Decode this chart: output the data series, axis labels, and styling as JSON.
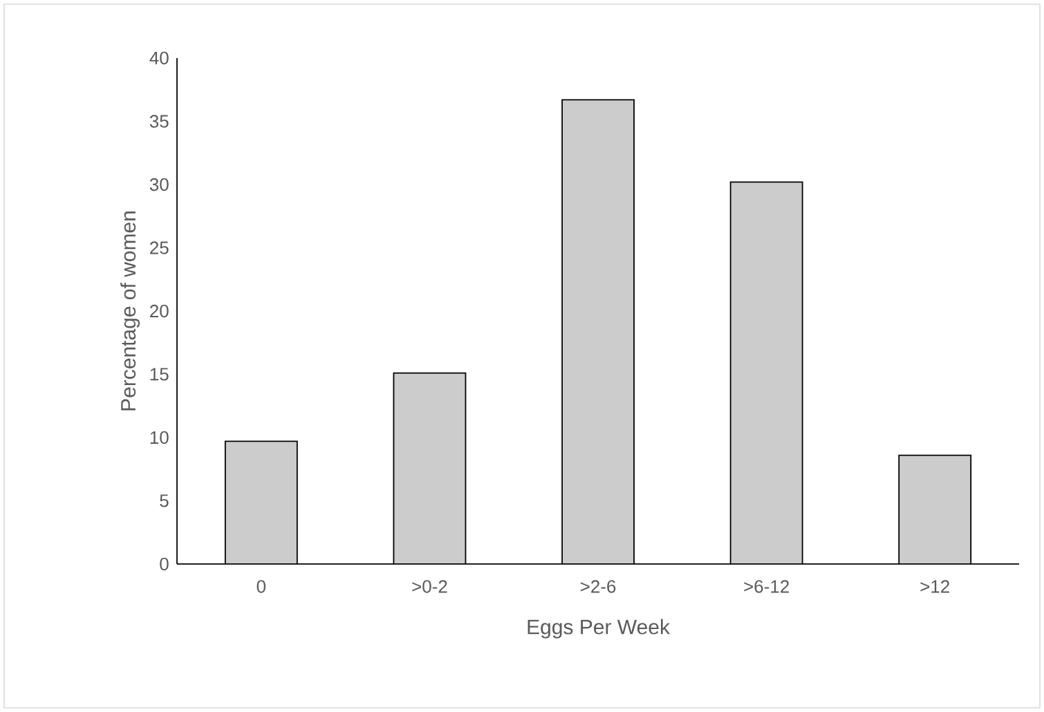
{
  "chart_data": {
    "type": "bar",
    "xlabel": "Eggs Per Week",
    "ylabel": "Percentage of women",
    "categories": [
      "0",
      ">0-2",
      ">2-6",
      ">6-12",
      ">12"
    ],
    "values": [
      9.7,
      15.1,
      36.7,
      30.2,
      8.6
    ],
    "color": "#cccccc",
    "ylim": [
      0,
      40
    ],
    "yticks": [
      0,
      5,
      10,
      15,
      20,
      25,
      30,
      35,
      40
    ]
  }
}
